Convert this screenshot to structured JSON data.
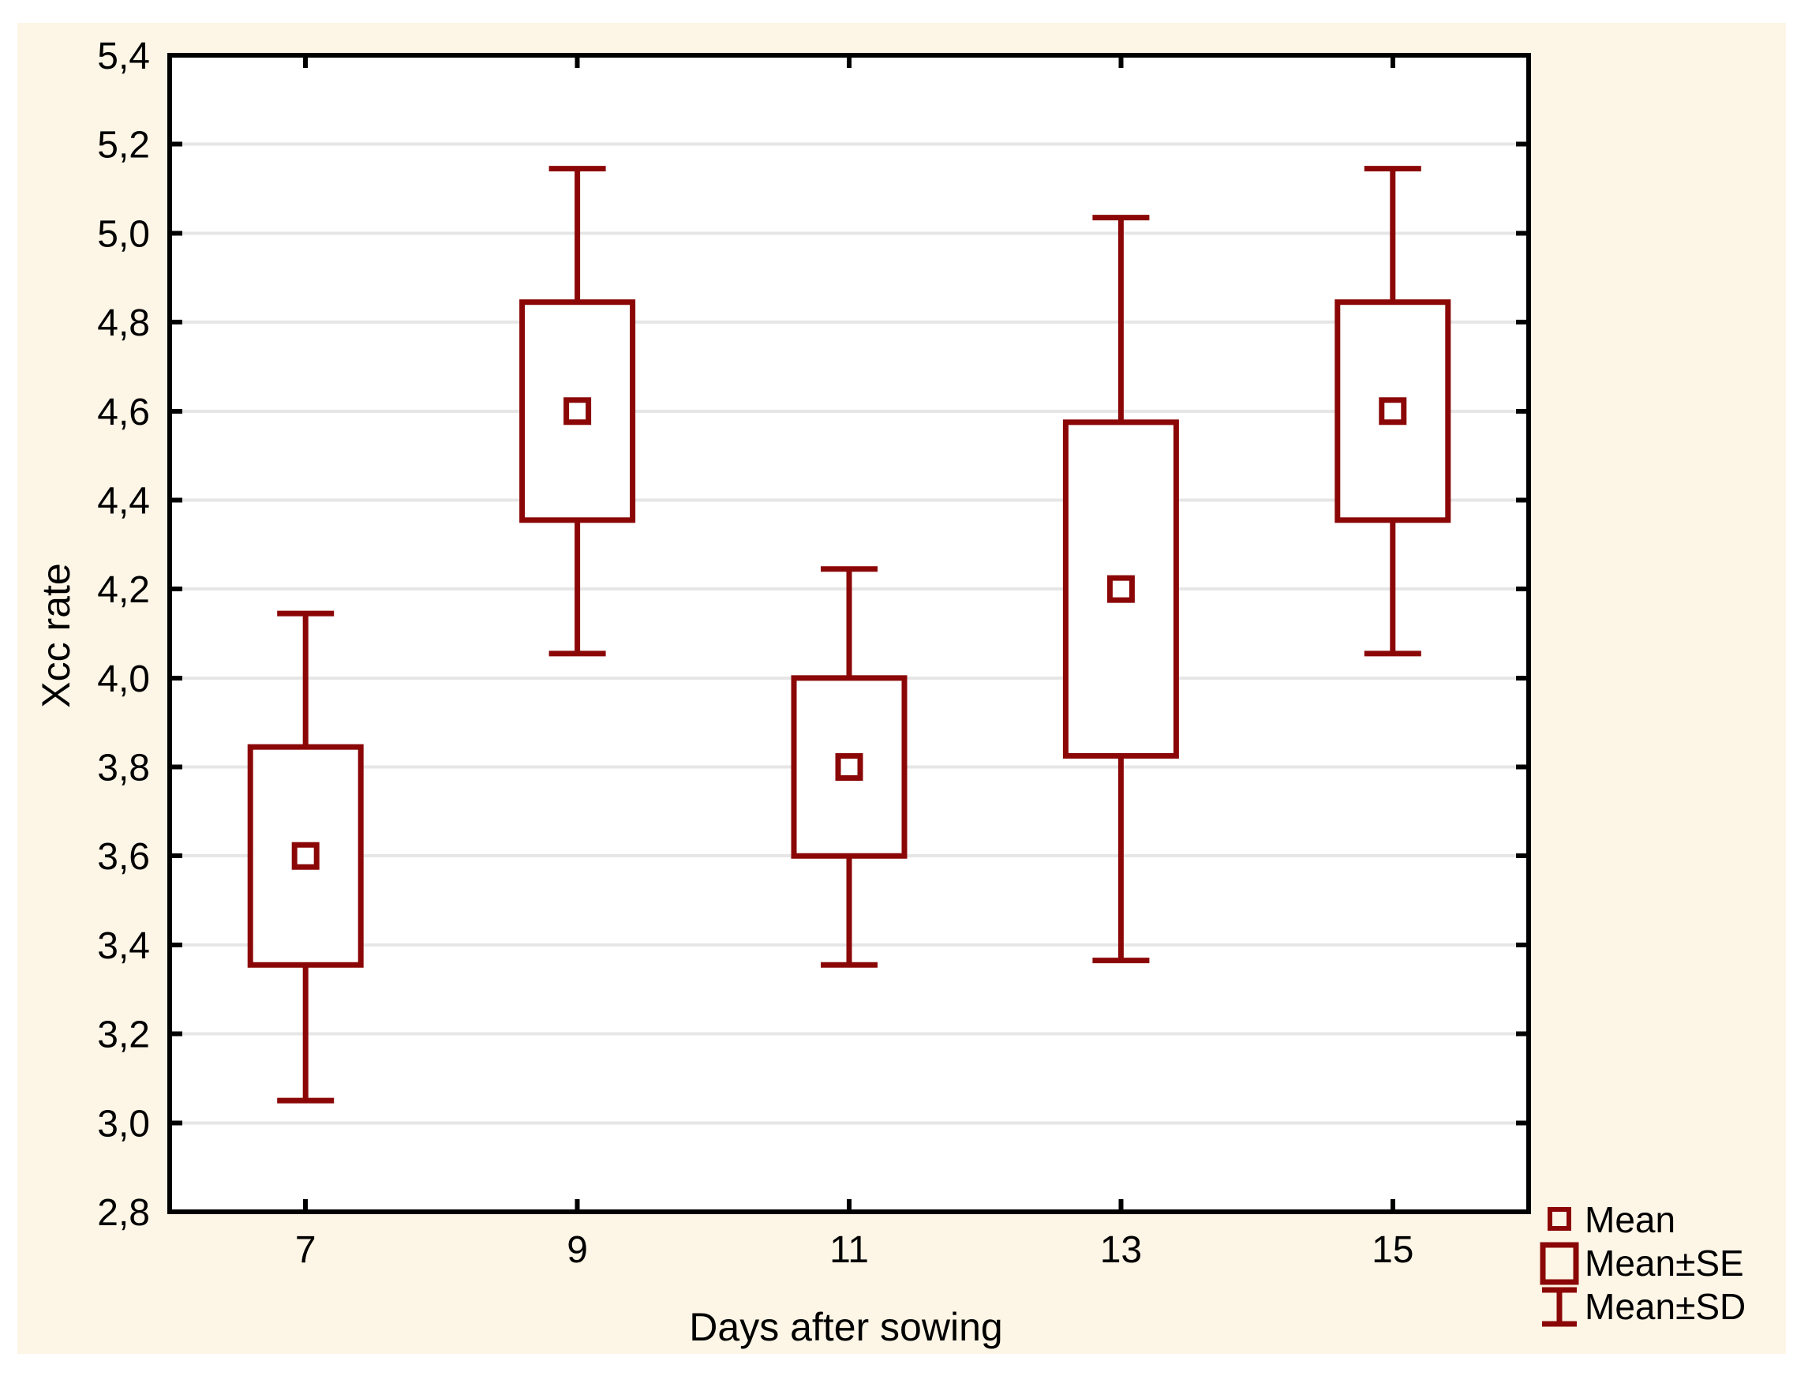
{
  "chart_data": {
    "type": "box",
    "title": "",
    "xlabel": "Days after sowing",
    "ylabel": "Xcc rate",
    "categories": [
      "7",
      "9",
      "11",
      "13",
      "15"
    ],
    "series": [
      {
        "name": "Mean",
        "values": [
          3.6,
          4.6,
          3.8,
          4.2,
          4.6
        ]
      },
      {
        "name": "Mean±SE",
        "low": [
          3.355,
          4.355,
          3.6,
          3.825,
          4.355
        ],
        "high": [
          3.845,
          4.845,
          4.0,
          4.575,
          4.845
        ]
      },
      {
        "name": "Mean±SD",
        "low": [
          3.05,
          4.055,
          3.355,
          3.365,
          4.055
        ],
        "high": [
          4.145,
          5.145,
          4.245,
          5.035,
          5.145
        ]
      }
    ],
    "ylim": [
      2.8,
      5.4
    ],
    "ytick_values": [
      2.8,
      3.0,
      3.2,
      3.4,
      3.6,
      3.8,
      4.0,
      4.2,
      4.4,
      4.6,
      4.8,
      5.0,
      5.2,
      5.4
    ],
    "ytick_labels": [
      "2,8",
      "3,0",
      "3,2",
      "3,4",
      "3,6",
      "3,8",
      "4,0",
      "4,2",
      "4,4",
      "4,6",
      "4,8",
      "5,0",
      "5,2",
      "5,4"
    ],
    "grid": "horizontal",
    "legend_position": "bottom-right",
    "legend": [
      "Mean",
      "Mean±SE",
      "Mean±SD"
    ],
    "colors": {
      "series": "#8B0707",
      "grid": "#E6E6E6",
      "frame": "#000000",
      "canvas": "#FDF5E6",
      "plot_bg": "#FFFFFF",
      "text": "#000000"
    }
  }
}
